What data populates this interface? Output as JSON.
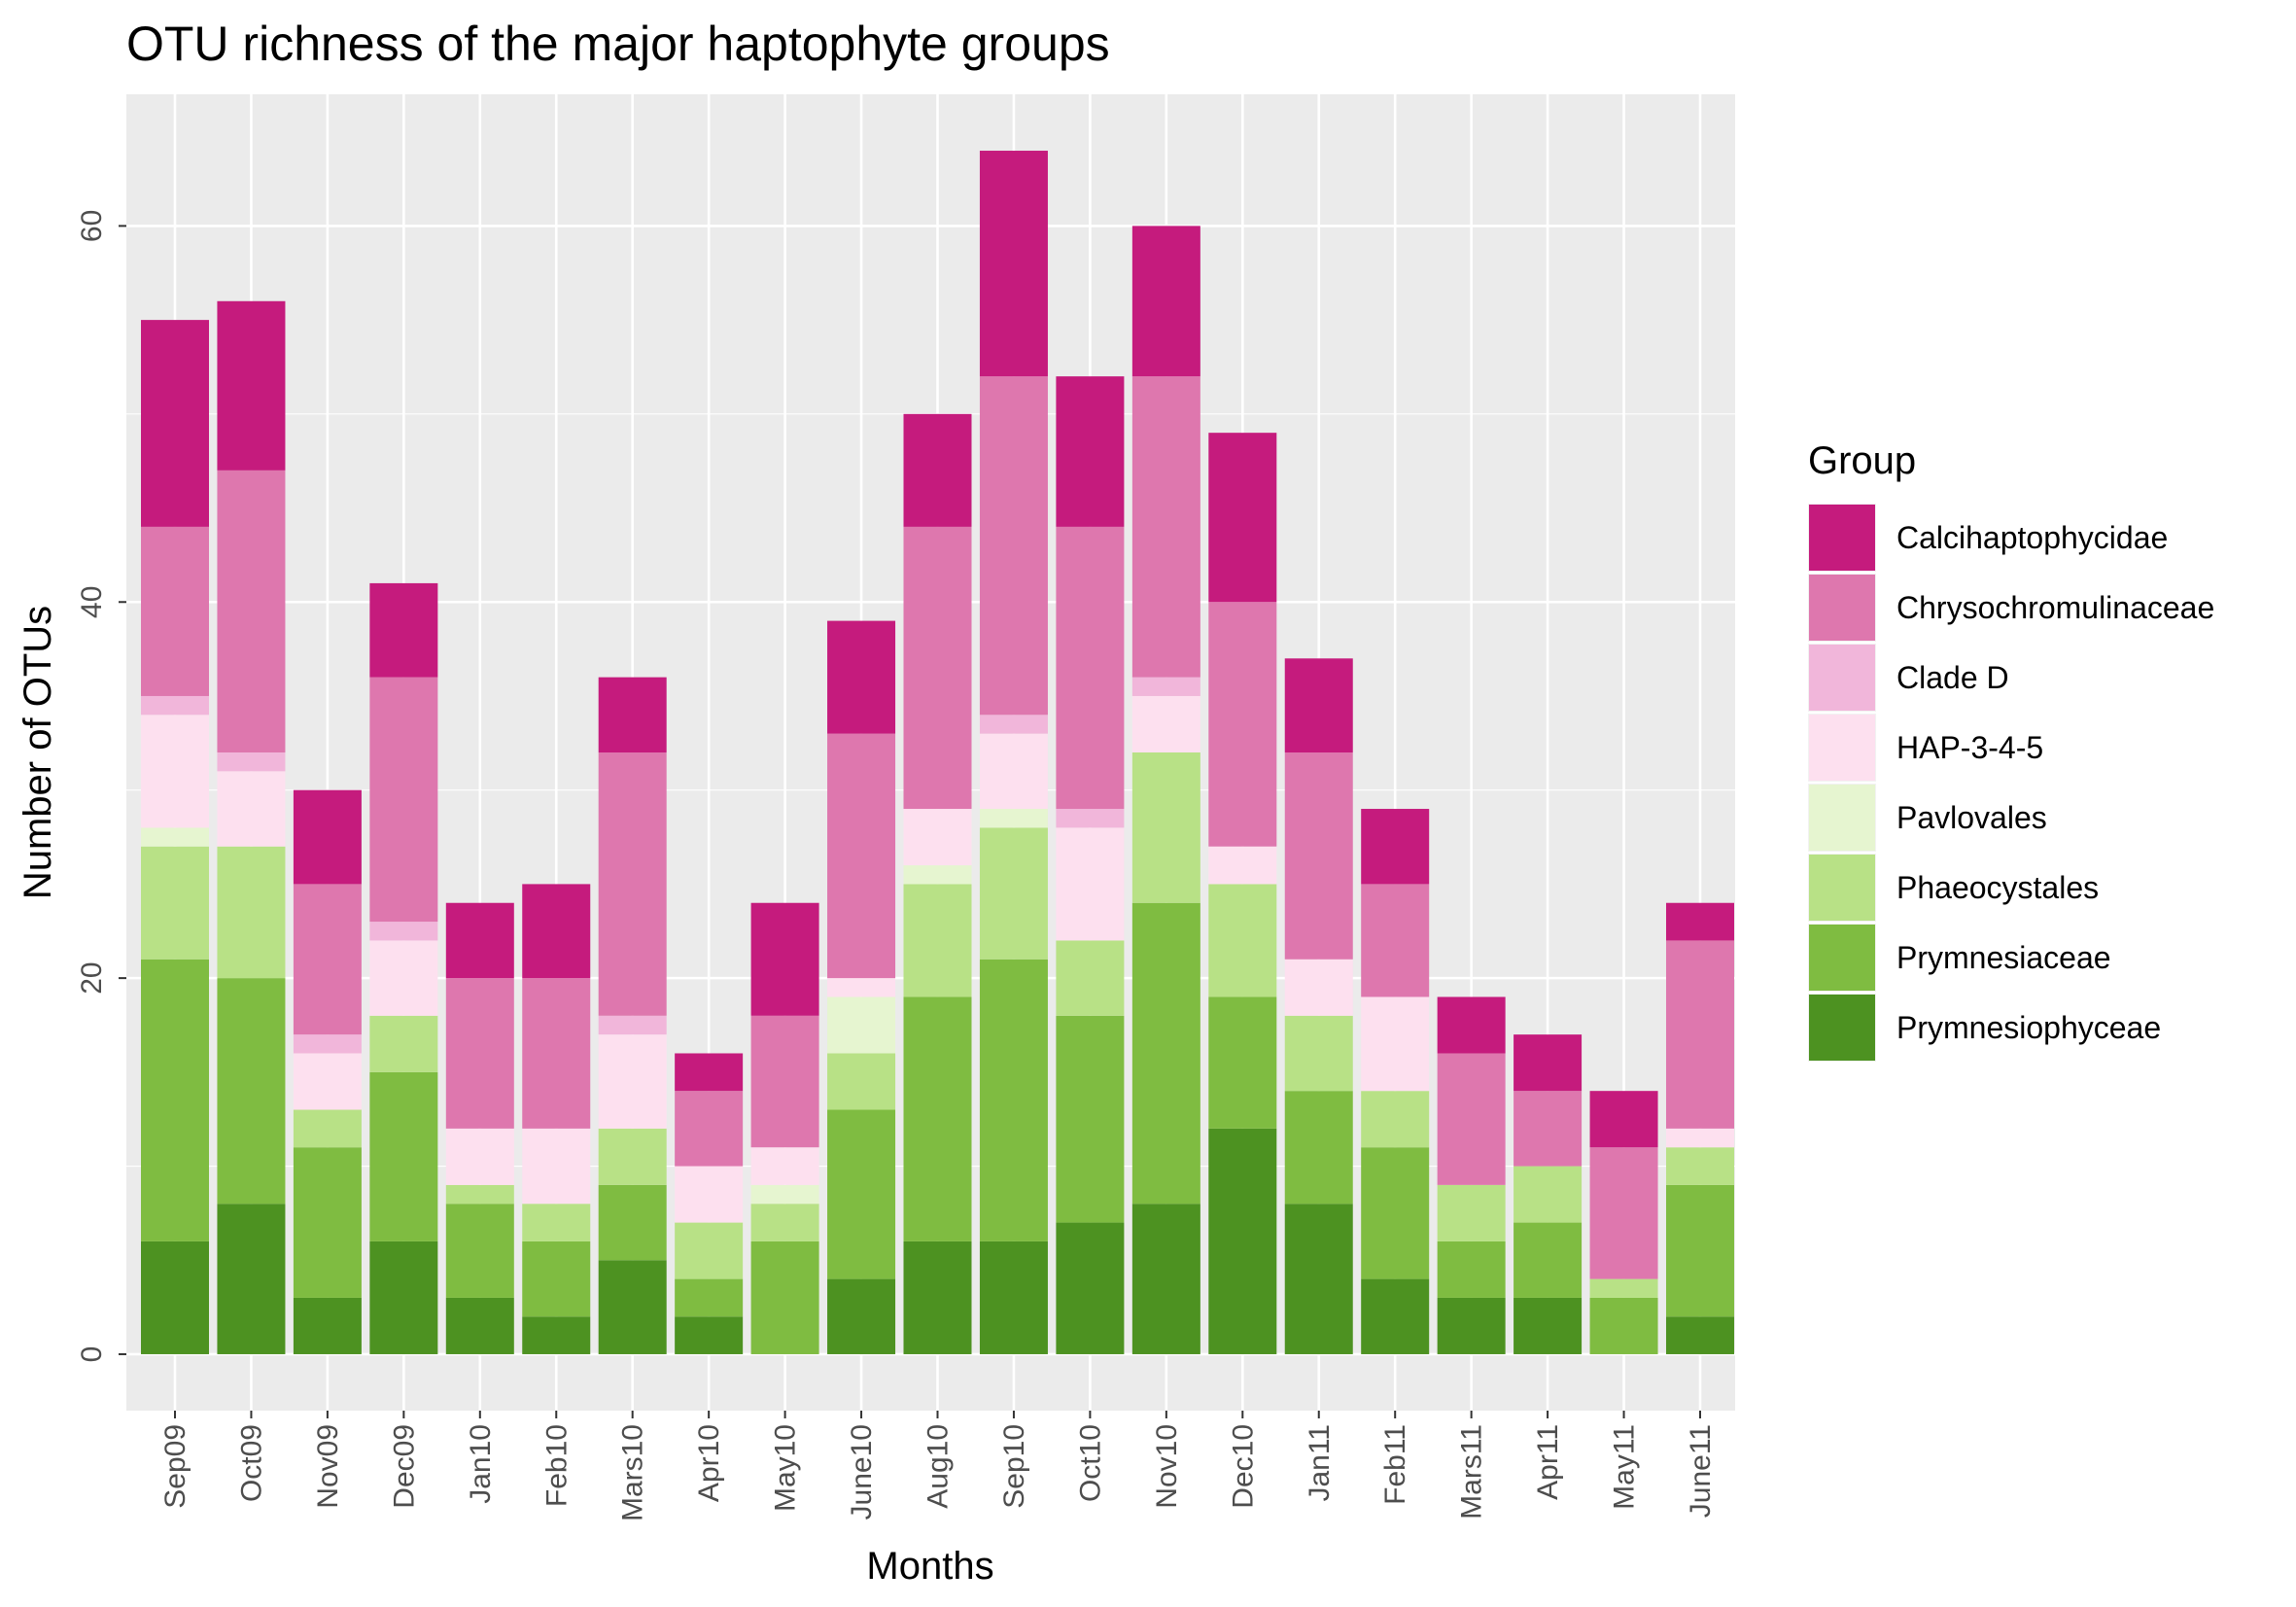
{
  "chart_data": {
    "type": "bar",
    "stacked": true,
    "title": "OTU richness of the major haptophyte groups",
    "xlabel": "Months",
    "ylabel": "Number of OTUs",
    "ylim": [
      -3,
      67
    ],
    "yticks": [
      0,
      20,
      40,
      60
    ],
    "grid": true,
    "legend_title": "Group",
    "legend_position": "right",
    "categories": [
      "Sep09",
      "Oct09",
      "Nov09",
      "Dec09",
      "Jan10",
      "Feb10",
      "Mars10",
      "Apr10",
      "May10",
      "June10",
      "Aug10",
      "Sep10",
      "Oct10",
      "Nov10",
      "Dec10",
      "Jan11",
      "Feb11",
      "Mars11",
      "Apr11",
      "May11",
      "June11"
    ],
    "series": [
      {
        "name": "Calcihaptophycidae",
        "color": "#C51B7D",
        "values": [
          11,
          9,
          5,
          5,
          4,
          5,
          4,
          2,
          6,
          6,
          6,
          12,
          8,
          8,
          9,
          5,
          4,
          3,
          3,
          3,
          2
        ]
      },
      {
        "name": "Chrysochromulinaceae",
        "color": "#DE77AE",
        "values": [
          9,
          15,
          8,
          13,
          8,
          8,
          14,
          4,
          7,
          13,
          15,
          18,
          15,
          16,
          13,
          11,
          6,
          7,
          4,
          7,
          10
        ]
      },
      {
        "name": "Clade D",
        "color": "#F1B6DA",
        "values": [
          1,
          1,
          1,
          1,
          0,
          0,
          1,
          0,
          0,
          0,
          0,
          1,
          1,
          1,
          0,
          0,
          0,
          0,
          0,
          0,
          0
        ]
      },
      {
        "name": "HAP-3-4-5",
        "color": "#FDE0EF",
        "values": [
          6,
          4,
          3,
          4,
          3,
          4,
          5,
          3,
          2,
          1,
          3,
          4,
          6,
          3,
          2,
          3,
          5,
          0,
          0,
          0,
          1
        ]
      },
      {
        "name": "Pavlovales",
        "color": "#E6F5D0",
        "values": [
          1,
          0,
          0,
          0,
          0,
          0,
          0,
          0,
          1,
          3,
          1,
          1,
          0,
          0,
          0,
          0,
          0,
          0,
          0,
          0,
          0
        ]
      },
      {
        "name": "Phaeocystales",
        "color": "#B8E186",
        "values": [
          6,
          7,
          2,
          3,
          1,
          2,
          3,
          3,
          2,
          3,
          6,
          7,
          4,
          8,
          6,
          4,
          3,
          3,
          3,
          1,
          2
        ]
      },
      {
        "name": "Prymnesiaceae",
        "color": "#7FBC41",
        "values": [
          15,
          12,
          8,
          9,
          5,
          4,
          4,
          2,
          6,
          9,
          13,
          15,
          11,
          16,
          7,
          6,
          7,
          3,
          4,
          3,
          7
        ]
      },
      {
        "name": "Prymnesiophyceae",
        "color": "#4D9221",
        "values": [
          6,
          8,
          3,
          6,
          3,
          2,
          5,
          2,
          0,
          4,
          6,
          6,
          7,
          8,
          12,
          8,
          4,
          3,
          3,
          0,
          2
        ]
      }
    ]
  }
}
